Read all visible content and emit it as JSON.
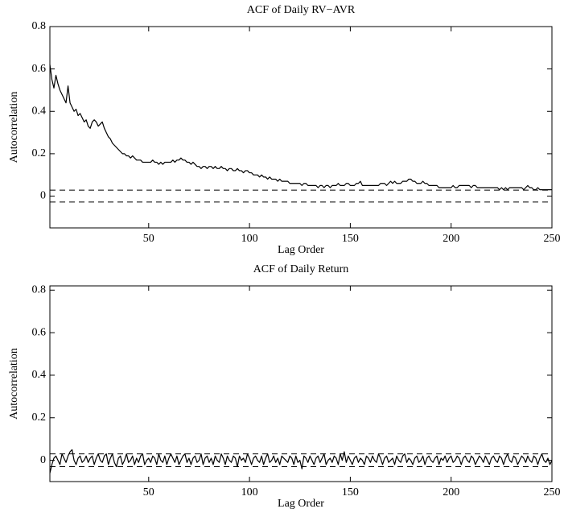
{
  "chart_data": [
    {
      "type": "line",
      "title": "ACF of Daily RV−AVR",
      "xlabel": "Lag Order",
      "ylabel": "Autocorrelation",
      "xlim": [
        1,
        250
      ],
      "ylim": [
        -0.15,
        0.8
      ],
      "xticks": [
        50,
        100,
        150,
        200,
        250
      ],
      "yticks": [
        0,
        0.2,
        0.4,
        0.6,
        0.8
      ],
      "bounds": [
        0.028,
        -0.028
      ],
      "x": [
        1,
        2,
        3,
        4,
        5,
        6,
        7,
        8,
        9,
        10,
        11,
        12,
        13,
        14,
        15,
        16,
        17,
        18,
        19,
        20,
        21,
        22,
        23,
        24,
        25,
        26,
        27,
        28,
        29,
        30,
        31,
        32,
        33,
        34,
        35,
        36,
        37,
        38,
        39,
        40,
        41,
        42,
        43,
        44,
        45,
        46,
        47,
        48,
        49,
        50,
        51,
        52,
        53,
        54,
        55,
        56,
        57,
        58,
        59,
        60,
        61,
        62,
        63,
        64,
        65,
        66,
        67,
        68,
        69,
        70,
        71,
        72,
        73,
        74,
        75,
        76,
        77,
        78,
        79,
        80,
        81,
        82,
        83,
        84,
        85,
        86,
        87,
        88,
        89,
        90,
        91,
        92,
        93,
        94,
        95,
        96,
        97,
        98,
        99,
        100,
        101,
        102,
        103,
        104,
        105,
        106,
        107,
        108,
        109,
        110,
        111,
        112,
        113,
        114,
        115,
        116,
        117,
        118,
        119,
        120,
        121,
        122,
        123,
        124,
        125,
        126,
        127,
        128,
        129,
        130,
        131,
        132,
        133,
        134,
        135,
        136,
        137,
        138,
        139,
        140,
        141,
        142,
        143,
        144,
        145,
        146,
        147,
        148,
        149,
        150,
        151,
        152,
        153,
        154,
        155,
        156,
        157,
        158,
        159,
        160,
        161,
        162,
        163,
        164,
        165,
        166,
        167,
        168,
        169,
        170,
        171,
        172,
        173,
        174,
        175,
        176,
        177,
        178,
        179,
        180,
        181,
        182,
        183,
        184,
        185,
        186,
        187,
        188,
        189,
        190,
        191,
        192,
        193,
        194,
        195,
        196,
        197,
        198,
        199,
        200,
        201,
        202,
        203,
        204,
        205,
        206,
        207,
        208,
        209,
        210,
        211,
        212,
        213,
        214,
        215,
        216,
        217,
        218,
        219,
        220,
        221,
        222,
        223,
        224,
        225,
        226,
        227,
        228,
        229,
        230,
        231,
        232,
        233,
        234,
        235,
        236,
        237,
        238,
        239,
        240,
        241,
        242,
        243,
        244,
        245,
        246,
        247,
        248,
        249,
        250
      ],
      "series": [
        {
          "color": "#000000",
          "values": [
            0.62,
            0.55,
            0.51,
            0.57,
            0.53,
            0.5,
            0.48,
            0.46,
            0.44,
            0.52,
            0.44,
            0.42,
            0.4,
            0.41,
            0.38,
            0.39,
            0.37,
            0.35,
            0.36,
            0.33,
            0.32,
            0.35,
            0.36,
            0.35,
            0.33,
            0.34,
            0.35,
            0.32,
            0.3,
            0.28,
            0.27,
            0.25,
            0.24,
            0.23,
            0.22,
            0.21,
            0.2,
            0.2,
            0.19,
            0.19,
            0.18,
            0.19,
            0.18,
            0.17,
            0.17,
            0.17,
            0.16,
            0.16,
            0.16,
            0.16,
            0.16,
            0.17,
            0.16,
            0.16,
            0.15,
            0.16,
            0.15,
            0.16,
            0.16,
            0.16,
            0.16,
            0.17,
            0.16,
            0.17,
            0.17,
            0.18,
            0.17,
            0.17,
            0.16,
            0.16,
            0.15,
            0.16,
            0.15,
            0.14,
            0.14,
            0.13,
            0.14,
            0.14,
            0.13,
            0.14,
            0.14,
            0.13,
            0.14,
            0.13,
            0.13,
            0.14,
            0.13,
            0.13,
            0.12,
            0.13,
            0.13,
            0.12,
            0.12,
            0.13,
            0.12,
            0.12,
            0.11,
            0.12,
            0.12,
            0.11,
            0.11,
            0.1,
            0.1,
            0.1,
            0.09,
            0.1,
            0.09,
            0.09,
            0.08,
            0.09,
            0.08,
            0.08,
            0.08,
            0.07,
            0.08,
            0.07,
            0.07,
            0.07,
            0.07,
            0.06,
            0.06,
            0.06,
            0.06,
            0.06,
            0.06,
            0.05,
            0.06,
            0.06,
            0.05,
            0.05,
            0.05,
            0.05,
            0.05,
            0.04,
            0.05,
            0.05,
            0.04,
            0.05,
            0.05,
            0.04,
            0.05,
            0.05,
            0.05,
            0.06,
            0.05,
            0.05,
            0.05,
            0.06,
            0.06,
            0.05,
            0.05,
            0.05,
            0.06,
            0.06,
            0.07,
            0.05,
            0.05,
            0.05,
            0.05,
            0.05,
            0.05,
            0.05,
            0.05,
            0.05,
            0.06,
            0.06,
            0.06,
            0.05,
            0.06,
            0.07,
            0.06,
            0.07,
            0.06,
            0.06,
            0.06,
            0.07,
            0.07,
            0.07,
            0.08,
            0.08,
            0.07,
            0.07,
            0.06,
            0.06,
            0.06,
            0.07,
            0.06,
            0.06,
            0.05,
            0.05,
            0.05,
            0.05,
            0.05,
            0.04,
            0.04,
            0.04,
            0.04,
            0.04,
            0.04,
            0.04,
            0.05,
            0.04,
            0.04,
            0.05,
            0.05,
            0.05,
            0.05,
            0.05,
            0.05,
            0.04,
            0.05,
            0.05,
            0.04,
            0.04,
            0.04,
            0.04,
            0.04,
            0.04,
            0.04,
            0.04,
            0.04,
            0.04,
            0.04,
            0.03,
            0.04,
            0.03,
            0.04,
            0.03,
            0.04,
            0.04,
            0.04,
            0.04,
            0.04,
            0.04,
            0.04,
            0.03,
            0.04,
            0.05,
            0.04,
            0.04,
            0.03,
            0.03,
            0.04,
            0.03,
            0.03,
            0.03,
            0.03,
            0.03,
            0.03,
            0.03
          ]
        }
      ]
    },
    {
      "type": "line",
      "title": "ACF of Daily Return",
      "xlabel": "Lag Order",
      "ylabel": "Autocorrelation",
      "xlim": [
        1,
        250
      ],
      "ylim": [
        -0.1,
        0.82
      ],
      "xticks": [
        50,
        100,
        150,
        200,
        250
      ],
      "yticks": [
        0,
        0.2,
        0.4,
        0.6,
        0.8
      ],
      "bounds": [
        0.03,
        -0.03
      ],
      "x": [
        1,
        2,
        3,
        4,
        5,
        6,
        7,
        8,
        9,
        10,
        11,
        12,
        13,
        14,
        15,
        16,
        17,
        18,
        19,
        20,
        21,
        22,
        23,
        24,
        25,
        26,
        27,
        28,
        29,
        30,
        31,
        32,
        33,
        34,
        35,
        36,
        37,
        38,
        39,
        40,
        41,
        42,
        43,
        44,
        45,
        46,
        47,
        48,
        49,
        50,
        51,
        52,
        53,
        54,
        55,
        56,
        57,
        58,
        59,
        60,
        61,
        62,
        63,
        64,
        65,
        66,
        67,
        68,
        69,
        70,
        71,
        72,
        73,
        74,
        75,
        76,
        77,
        78,
        79,
        80,
        81,
        82,
        83,
        84,
        85,
        86,
        87,
        88,
        89,
        90,
        91,
        92,
        93,
        94,
        95,
        96,
        97,
        98,
        99,
        100,
        101,
        102,
        103,
        104,
        105,
        106,
        107,
        108,
        109,
        110,
        111,
        112,
        113,
        114,
        115,
        116,
        117,
        118,
        119,
        120,
        121,
        122,
        123,
        124,
        125,
        126,
        127,
        128,
        129,
        130,
        131,
        132,
        133,
        134,
        135,
        136,
        137,
        138,
        139,
        140,
        141,
        142,
        143,
        144,
        145,
        146,
        147,
        148,
        149,
        150,
        151,
        152,
        153,
        154,
        155,
        156,
        157,
        158,
        159,
        160,
        161,
        162,
        163,
        164,
        165,
        166,
        167,
        168,
        169,
        170,
        171,
        172,
        173,
        174,
        175,
        176,
        177,
        178,
        179,
        180,
        181,
        182,
        183,
        184,
        185,
        186,
        187,
        188,
        189,
        190,
        191,
        192,
        193,
        194,
        195,
        196,
        197,
        198,
        199,
        200,
        201,
        202,
        203,
        204,
        205,
        206,
        207,
        208,
        209,
        210,
        211,
        212,
        213,
        214,
        215,
        216,
        217,
        218,
        219,
        220,
        221,
        222,
        223,
        224,
        225,
        226,
        227,
        228,
        229,
        230,
        231,
        232,
        233,
        234,
        235,
        236,
        237,
        238,
        239,
        240,
        241,
        242,
        243,
        244,
        245,
        246,
        247,
        248,
        249,
        250
      ],
      "series": [
        {
          "color": "#000000",
          "values": [
            -0.06,
            -0.02,
            0.01,
            0.02,
            0.0,
            -0.02,
            0.03,
            0.01,
            -0.01,
            0.02,
            0.04,
            0.05,
            0.0,
            -0.02,
            0.01,
            0.02,
            -0.01,
            0.0,
            0.02,
            -0.01,
            0.01,
            0.02,
            -0.02,
            0.01,
            0.03,
            0.0,
            -0.01,
            0.02,
            0.03,
            -0.02,
            0.01,
            0.03,
            -0.01,
            -0.03,
            0.01,
            0.02,
            -0.02,
            0.0,
            0.03,
            -0.01,
            0.0,
            0.02,
            -0.02,
            0.01,
            -0.01,
            0.02,
            0.03,
            -0.02,
            0.0,
            0.01,
            -0.01,
            0.02,
            0.01,
            -0.02,
            0.03,
            0.0,
            -0.01,
            0.02,
            -0.02,
            0.01,
            0.03,
            0.01,
            -0.01,
            0.02,
            -0.02,
            0.0,
            0.02,
            0.03,
            -0.01,
            0.01,
            -0.02,
            0.01,
            0.02,
            -0.01,
            0.0,
            0.03,
            -0.02,
            0.01,
            0.02,
            -0.01,
            0.01,
            -0.02,
            0.02,
            0.0,
            -0.01,
            0.03,
            0.01,
            -0.02,
            0.02,
            0.0,
            -0.01,
            0.02,
            0.01,
            -0.03,
            0.02,
            0.0,
            0.01,
            -0.01,
            0.03,
            0.01,
            -0.02,
            0.01,
            0.02,
            0.0,
            -0.01,
            0.02,
            -0.02,
            0.01,
            0.03,
            -0.01,
            0.0,
            0.02,
            -0.01,
            0.01,
            -0.02,
            0.02,
            0.01,
            0.0,
            -0.01,
            0.02,
            0.01,
            -0.02,
            0.02,
            -0.01,
            0.0,
            -0.04,
            0.02,
            0.01,
            -0.01,
            0.02,
            0.0,
            -0.02,
            0.01,
            0.02,
            -0.01,
            0.01,
            0.03,
            -0.02,
            0.0,
            0.01,
            -0.01,
            0.02,
            0.01,
            -0.02,
            0.03,
            0.0,
            0.04,
            -0.01,
            0.02,
            0.0,
            -0.02,
            0.01,
            0.02,
            -0.01,
            0.01,
            0.0,
            -0.02,
            0.02,
            0.01,
            -0.01,
            0.02,
            0.0,
            -0.01,
            0.03,
            0.01,
            -0.02,
            0.01,
            0.02,
            -0.01,
            0.0,
            0.01,
            -0.02,
            0.02,
            0.0,
            -0.01,
            0.02,
            0.03,
            -0.01,
            0.01,
            0.0,
            -0.02,
            0.01,
            0.02,
            -0.01,
            0.0,
            0.02,
            -0.02,
            0.01,
            0.02,
            0.0,
            -0.01,
            0.01,
            0.02,
            -0.02,
            0.01,
            0.0,
            0.02,
            -0.01,
            0.01,
            0.02,
            -0.01,
            0.0,
            0.02,
            0.01,
            -0.02,
            0.01,
            0.02,
            0.0,
            -0.01,
            0.02,
            0.01,
            -0.02,
            0.0,
            0.02,
            0.01,
            -0.01,
            0.02,
            0.0,
            -0.02,
            0.01,
            0.02,
            0.0,
            -0.01,
            0.02,
            0.01,
            -0.02,
            0.01,
            0.03,
            0.0,
            -0.01,
            0.02,
            0.01,
            -0.02,
            0.0,
            0.02,
            0.01,
            -0.01,
            0.02,
            0.0,
            -0.01,
            0.02,
            0.01,
            -0.02,
            0.01,
            0.03,
            0.0,
            -0.01,
            0.01,
            -0.02,
            0.0
          ]
        }
      ]
    }
  ]
}
